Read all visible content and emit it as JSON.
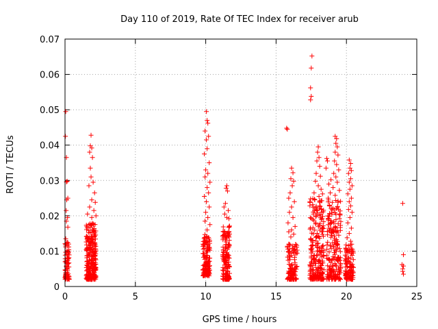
{
  "chart_data": {
    "type": "scatter",
    "title": "Day 110 of 2019, Rate Of TEC Index for receiver arub",
    "xlabel": "GPS time / hours",
    "ylabel": "ROTI / TECUs",
    "xlim": [
      0,
      25
    ],
    "ylim": [
      0,
      0.07
    ],
    "xticks": [
      0,
      5,
      10,
      15,
      20,
      25
    ],
    "xtick_labels": [
      "0",
      "5",
      "10",
      "15",
      "20",
      "25"
    ],
    "yticks": [
      0,
      0.01,
      0.02,
      0.03,
      0.04,
      0.05,
      0.06,
      0.07
    ],
    "ytick_labels": [
      "0",
      "0.01",
      "0.02",
      "0.03",
      "0.04",
      "0.05",
      "0.06",
      "0.07"
    ],
    "grid": true,
    "marker": "+",
    "color": "#ff0000",
    "clusters": [
      {
        "x": [
          0.0,
          0.3
        ],
        "y": [
          0.002,
          0.0125
        ],
        "n": 80
      },
      {
        "x": [
          1.5,
          2.2
        ],
        "y": [
          0.002,
          0.018
        ],
        "n": 260
      },
      {
        "x": [
          9.8,
          10.3
        ],
        "y": [
          0.003,
          0.015
        ],
        "n": 140
      },
      {
        "x": [
          11.2,
          11.7
        ],
        "y": [
          0.002,
          0.018
        ],
        "n": 150
      },
      {
        "x": [
          15.8,
          16.5
        ],
        "y": [
          0.002,
          0.012
        ],
        "n": 120
      },
      {
        "x": [
          17.4,
          18.4
        ],
        "y": [
          0.002,
          0.025
        ],
        "n": 220
      },
      {
        "x": [
          18.6,
          19.6
        ],
        "y": [
          0.002,
          0.025
        ],
        "n": 200
      },
      {
        "x": [
          19.9,
          20.5
        ],
        "y": [
          0.002,
          0.012
        ],
        "n": 120
      }
    ],
    "points": [
      [
        0.05,
        0.0495
      ],
      [
        0.03,
        0.0425
      ],
      [
        0.1,
        0.0365
      ],
      [
        0.15,
        0.0298
      ],
      [
        0.1,
        0.0296
      ],
      [
        0.2,
        0.025
      ],
      [
        0.12,
        0.0245
      ],
      [
        0.08,
        0.0215
      ],
      [
        0.18,
        0.0195
      ],
      [
        0.1,
        0.0185
      ],
      [
        0.2,
        0.0168
      ],
      [
        0.05,
        0.0135
      ],
      [
        0.15,
        0.0125
      ],
      [
        1.85,
        0.0428
      ],
      [
        1.8,
        0.0398
      ],
      [
        1.9,
        0.0392
      ],
      [
        1.75,
        0.038
      ],
      [
        1.95,
        0.0365
      ],
      [
        1.8,
        0.0335
      ],
      [
        1.85,
        0.031
      ],
      [
        2.0,
        0.0295
      ],
      [
        1.7,
        0.0285
      ],
      [
        2.1,
        0.0265
      ],
      [
        1.9,
        0.0245
      ],
      [
        2.15,
        0.0238
      ],
      [
        1.75,
        0.0225
      ],
      [
        2.05,
        0.0215
      ],
      [
        1.6,
        0.0205
      ],
      [
        2.2,
        0.02
      ],
      [
        1.9,
        0.0195
      ],
      [
        10.05,
        0.0495
      ],
      [
        10.1,
        0.047
      ],
      [
        10.15,
        0.0462
      ],
      [
        9.95,
        0.044
      ],
      [
        10.2,
        0.0425
      ],
      [
        10.05,
        0.0415
      ],
      [
        10.1,
        0.039
      ],
      [
        9.9,
        0.0375
      ],
      [
        10.25,
        0.035
      ],
      [
        10.0,
        0.033
      ],
      [
        10.15,
        0.032
      ],
      [
        9.95,
        0.031
      ],
      [
        10.3,
        0.0295
      ],
      [
        10.1,
        0.028
      ],
      [
        10.2,
        0.0265
      ],
      [
        9.9,
        0.0255
      ],
      [
        10.05,
        0.024
      ],
      [
        10.25,
        0.0225
      ],
      [
        10.0,
        0.021
      ],
      [
        10.15,
        0.0195
      ],
      [
        9.95,
        0.0185
      ],
      [
        10.3,
        0.0175
      ],
      [
        10.1,
        0.016
      ],
      [
        11.5,
        0.0285
      ],
      [
        11.45,
        0.0278
      ],
      [
        11.55,
        0.027
      ],
      [
        11.4,
        0.0235
      ],
      [
        11.3,
        0.0225
      ],
      [
        11.6,
        0.0215
      ],
      [
        11.35,
        0.0205
      ],
      [
        11.5,
        0.0195
      ],
      [
        11.65,
        0.0192
      ],
      [
        15.75,
        0.0448
      ],
      [
        15.8,
        0.0445
      ],
      [
        16.1,
        0.0335
      ],
      [
        16.2,
        0.0322
      ],
      [
        16.05,
        0.0305
      ],
      [
        16.25,
        0.0298
      ],
      [
        16.15,
        0.0285
      ],
      [
        16.0,
        0.0265
      ],
      [
        15.9,
        0.025
      ],
      [
        16.3,
        0.024
      ],
      [
        16.1,
        0.0225
      ],
      [
        15.95,
        0.021
      ],
      [
        16.2,
        0.0195
      ],
      [
        15.85,
        0.018
      ],
      [
        16.35,
        0.017
      ],
      [
        16.1,
        0.016
      ],
      [
        15.9,
        0.0155
      ],
      [
        16.25,
        0.0148
      ],
      [
        16.05,
        0.014
      ],
      [
        17.55,
        0.0652
      ],
      [
        17.5,
        0.0618
      ],
      [
        17.45,
        0.0562
      ],
      [
        17.5,
        0.0538
      ],
      [
        17.45,
        0.0528
      ],
      [
        18.0,
        0.0395
      ],
      [
        17.95,
        0.038
      ],
      [
        18.05,
        0.0365
      ],
      [
        17.9,
        0.0355
      ],
      [
        18.1,
        0.034
      ],
      [
        17.85,
        0.032
      ],
      [
        18.15,
        0.0312
      ],
      [
        17.8,
        0.0298
      ],
      [
        18.0,
        0.0285
      ],
      [
        18.2,
        0.0275
      ],
      [
        17.7,
        0.0265
      ],
      [
        18.05,
        0.0255
      ],
      [
        18.3,
        0.0262
      ],
      [
        17.75,
        0.0245
      ],
      [
        17.6,
        0.0232
      ],
      [
        18.1,
        0.0228
      ],
      [
        17.95,
        0.0215
      ],
      [
        18.25,
        0.021
      ],
      [
        17.65,
        0.0205
      ],
      [
        17.85,
        0.02
      ],
      [
        18.6,
        0.0362
      ],
      [
        18.65,
        0.0355
      ],
      [
        18.55,
        0.0335
      ],
      [
        19.2,
        0.0425
      ],
      [
        19.3,
        0.0418
      ],
      [
        19.25,
        0.0405
      ],
      [
        19.35,
        0.0395
      ],
      [
        19.2,
        0.038
      ],
      [
        19.4,
        0.0372
      ],
      [
        19.15,
        0.0355
      ],
      [
        19.3,
        0.0345
      ],
      [
        19.45,
        0.033
      ],
      [
        19.1,
        0.032
      ],
      [
        19.25,
        0.031
      ],
      [
        18.9,
        0.0302
      ],
      [
        19.35,
        0.0295
      ],
      [
        18.75,
        0.029
      ],
      [
        19.05,
        0.028
      ],
      [
        19.5,
        0.0272
      ],
      [
        18.85,
        0.0265
      ],
      [
        19.2,
        0.0258
      ],
      [
        18.7,
        0.025
      ],
      [
        19.4,
        0.0242
      ],
      [
        19.0,
        0.0238
      ],
      [
        18.8,
        0.0228
      ],
      [
        19.3,
        0.022
      ],
      [
        18.95,
        0.021
      ],
      [
        19.55,
        0.0205
      ],
      [
        20.2,
        0.0358
      ],
      [
        20.3,
        0.0348
      ],
      [
        20.25,
        0.0335
      ],
      [
        20.35,
        0.0328
      ],
      [
        20.15,
        0.032
      ],
      [
        20.3,
        0.0305
      ],
      [
        20.2,
        0.0295
      ],
      [
        20.4,
        0.0285
      ],
      [
        20.25,
        0.0275
      ],
      [
        20.1,
        0.0262
      ],
      [
        20.35,
        0.025
      ],
      [
        20.2,
        0.024
      ],
      [
        20.3,
        0.0228
      ],
      [
        20.15,
        0.0218
      ],
      [
        20.4,
        0.021
      ],
      [
        20.25,
        0.0195
      ],
      [
        20.1,
        0.018
      ],
      [
        20.35,
        0.0165
      ],
      [
        20.2,
        0.015
      ],
      [
        20.05,
        0.0138
      ],
      [
        20.3,
        0.0128
      ],
      [
        24.0,
        0.0235
      ],
      [
        24.05,
        0.009
      ],
      [
        23.95,
        0.0062
      ],
      [
        24.05,
        0.0058
      ],
      [
        24.0,
        0.005
      ],
      [
        24.0,
        0.0043
      ],
      [
        24.05,
        0.0035
      ]
    ]
  }
}
